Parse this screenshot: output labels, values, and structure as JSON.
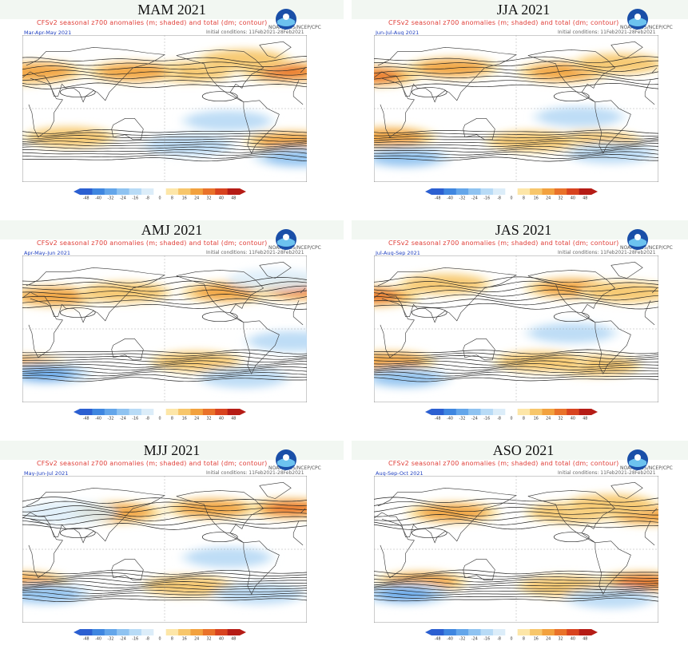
{
  "panels": [
    {
      "season": "MAM 2021",
      "period": "Mar-Apr-May 2021"
    },
    {
      "season": "JJA 2021",
      "period": "Jun-Jul-Aug 2021"
    },
    {
      "season": "AMJ 2021",
      "period": "Apr-May-Jun 2021"
    },
    {
      "season": "JAS 2021",
      "period": "Jul-Aug-Sep 2021"
    },
    {
      "season": "MJJ 2021",
      "period": "May-Jun-Jul 2021"
    },
    {
      "season": "ASO 2021",
      "period": "Aug-Sep-Oct 2021"
    }
  ],
  "map_title": "CFSv2 seasonal z700 anomalies (m; shaded) and total (dm; contour)",
  "conditions": "Initial conditions: 11Feb2021-28Feb2021",
  "agency": "NOAA/NWS/NCEP/CPC",
  "logo_text": "NOAA",
  "colorbar_labels": [
    "-48",
    "-40",
    "-32",
    "-24",
    "-16",
    "-8",
    "0",
    "8",
    "16",
    "24",
    "32",
    "40",
    "48"
  ],
  "colors": {
    "colorbar": [
      "#2b5fd1",
      "#3f86e0",
      "#64a6ea",
      "#8fc3f1",
      "#b8dbf6",
      "#dcedf9",
      "#ffffff",
      "#fde6a8",
      "#f7c66b",
      "#f2a13e",
      "#e9722a",
      "#d8431f",
      "#b51c16"
    ],
    "title_text": "#e0403a",
    "period_text": "#2040c0"
  },
  "anomalies": [
    [
      {
        "lon": -150,
        "lat": 45,
        "v": 1
      },
      {
        "lon": -25,
        "lat": 45,
        "v": 1.6
      },
      {
        "lon": 0,
        "lat": 42,
        "v": 2
      },
      {
        "lon": 20,
        "lat": 45,
        "v": 1.5
      },
      {
        "lon": 140,
        "lat": 45,
        "v": 1.4
      },
      {
        "lon": -80,
        "lat": 60,
        "v": 0.8
      },
      {
        "lon": -100,
        "lat": -15,
        "v": -0.8
      },
      {
        "lon": -20,
        "lat": -40,
        "v": 1.3
      },
      {
        "lon": -10,
        "lat": -60,
        "v": -1.4
      },
      {
        "lon": 60,
        "lat": -35,
        "v": 0.8
      },
      {
        "lon": -150,
        "lat": -45,
        "v": -0.8
      }
    ],
    [
      {
        "lon": -120,
        "lat": 45,
        "v": 1.2
      },
      {
        "lon": 0,
        "lat": 40,
        "v": 2
      },
      {
        "lon": 100,
        "lat": 50,
        "v": 1.3
      },
      {
        "lon": -50,
        "lat": 55,
        "v": 1
      },
      {
        "lon": -100,
        "lat": -10,
        "v": -0.9
      },
      {
        "lon": 20,
        "lat": -35,
        "v": 1.3
      },
      {
        "lon": -80,
        "lat": -40,
        "v": 1
      },
      {
        "lon": 40,
        "lat": -60,
        "v": -1.2
      },
      {
        "lon": -60,
        "lat": -55,
        "v": -0.8
      },
      {
        "lon": -160,
        "lat": -40,
        "v": 0.9
      }
    ],
    [
      {
        "lon": -100,
        "lat": 45,
        "v": 1.3
      },
      {
        "lon": -10,
        "lat": 48,
        "v": 2
      },
      {
        "lon": 40,
        "lat": 40,
        "v": 1.2
      },
      {
        "lon": 130,
        "lat": 45,
        "v": 1
      },
      {
        "lon": -20,
        "lat": -15,
        "v": -0.8
      },
      {
        "lon": 0,
        "lat": -45,
        "v": 1.2
      },
      {
        "lon": 30,
        "lat": -55,
        "v": -1.6
      },
      {
        "lon": -140,
        "lat": -40,
        "v": 0.9
      },
      {
        "lon": -80,
        "lat": -60,
        "v": -0.9
      },
      {
        "lon": -40,
        "lat": 60,
        "v": -0.5
      }
    ],
    [
      {
        "lon": -110,
        "lat": 50,
        "v": 1.3
      },
      {
        "lon": 0,
        "lat": 40,
        "v": 1.8
      },
      {
        "lon": 90,
        "lat": 55,
        "v": 1.1
      },
      {
        "lon": -40,
        "lat": 45,
        "v": 0.9
      },
      {
        "lon": -110,
        "lat": -5,
        "v": -0.7
      },
      {
        "lon": 20,
        "lat": -40,
        "v": 1.4
      },
      {
        "lon": -80,
        "lat": -45,
        "v": 1
      },
      {
        "lon": 40,
        "lat": -60,
        "v": -1.3
      },
      {
        "lon": -150,
        "lat": -40,
        "v": 0.9
      }
    ],
    [
      {
        "lon": -20,
        "lat": 50,
        "v": 2
      },
      {
        "lon": -120,
        "lat": 50,
        "v": 1.2
      },
      {
        "lon": 120,
        "lat": 45,
        "v": 1.2
      },
      {
        "lon": 60,
        "lat": 45,
        "v": -0.5
      },
      {
        "lon": -100,
        "lat": -10,
        "v": -0.8
      },
      {
        "lon": 0,
        "lat": -40,
        "v": 1.2
      },
      {
        "lon": 30,
        "lat": -55,
        "v": -1.3
      },
      {
        "lon": -150,
        "lat": -45,
        "v": 1
      },
      {
        "lon": -60,
        "lat": -55,
        "v": -0.8
      }
    ],
    [
      {
        "lon": -110,
        "lat": 45,
        "v": 1.1
      },
      {
        "lon": -10,
        "lat": 42,
        "v": 1.3
      },
      {
        "lon": 100,
        "lat": 45,
        "v": 1.2
      },
      {
        "lon": -60,
        "lat": 55,
        "v": 0.9
      },
      {
        "lon": -20,
        "lat": -40,
        "v": 1.6
      },
      {
        "lon": 60,
        "lat": -40,
        "v": 1.2
      },
      {
        "lon": 40,
        "lat": -55,
        "v": -1.6
      },
      {
        "lon": -120,
        "lat": -45,
        "v": 1
      },
      {
        "lon": -60,
        "lat": -60,
        "v": -0.8
      }
    ]
  ]
}
